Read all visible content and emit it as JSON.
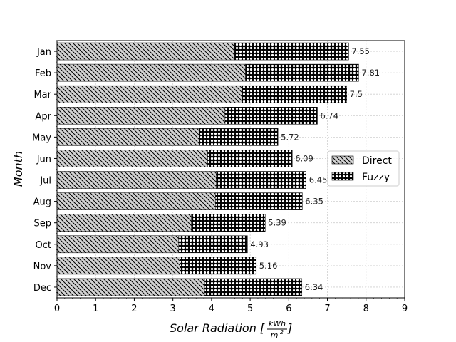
{
  "chart_data": {
    "type": "bar",
    "orientation": "horizontal",
    "stacked": true,
    "categories": [
      "Jan",
      "Feb",
      "Mar",
      "Apr",
      "May",
      "Jun",
      "Jul",
      "Aug",
      "Sep",
      "Oct",
      "Nov",
      "Dec"
    ],
    "series": [
      {
        "name": "Direct",
        "values": [
          4.6,
          4.88,
          4.8,
          4.35,
          3.68,
          3.9,
          4.12,
          4.1,
          3.48,
          3.15,
          3.18,
          3.82
        ],
        "hatch": "diagonal",
        "color": "#d3d3d3"
      },
      {
        "name": "Fuzzy",
        "values": [
          2.95,
          2.93,
          2.7,
          2.39,
          2.04,
          2.19,
          2.33,
          2.25,
          1.91,
          1.78,
          1.98,
          2.52
        ],
        "hatch": "dots",
        "color": "#ffffff"
      }
    ],
    "totals": [
      "7.55",
      "7.81",
      "7.5",
      "6.74",
      "5.72",
      "6.09",
      "6.45",
      "6.35",
      "5.39",
      "4.93",
      "5.16",
      "6.34"
    ],
    "xlabel_main": "Solar Radiation [",
    "xlabel_num": "kWh",
    "xlabel_den": "m",
    "xlabel_den_exp": "2",
    "xlabel_close": "]",
    "ylabel": "Month",
    "xlim": [
      0,
      9
    ],
    "xticks": [
      "0",
      "1",
      "2",
      "3",
      "4",
      "5",
      "6",
      "7",
      "8",
      "9"
    ],
    "grid": true,
    "legend_position": "center-right"
  }
}
